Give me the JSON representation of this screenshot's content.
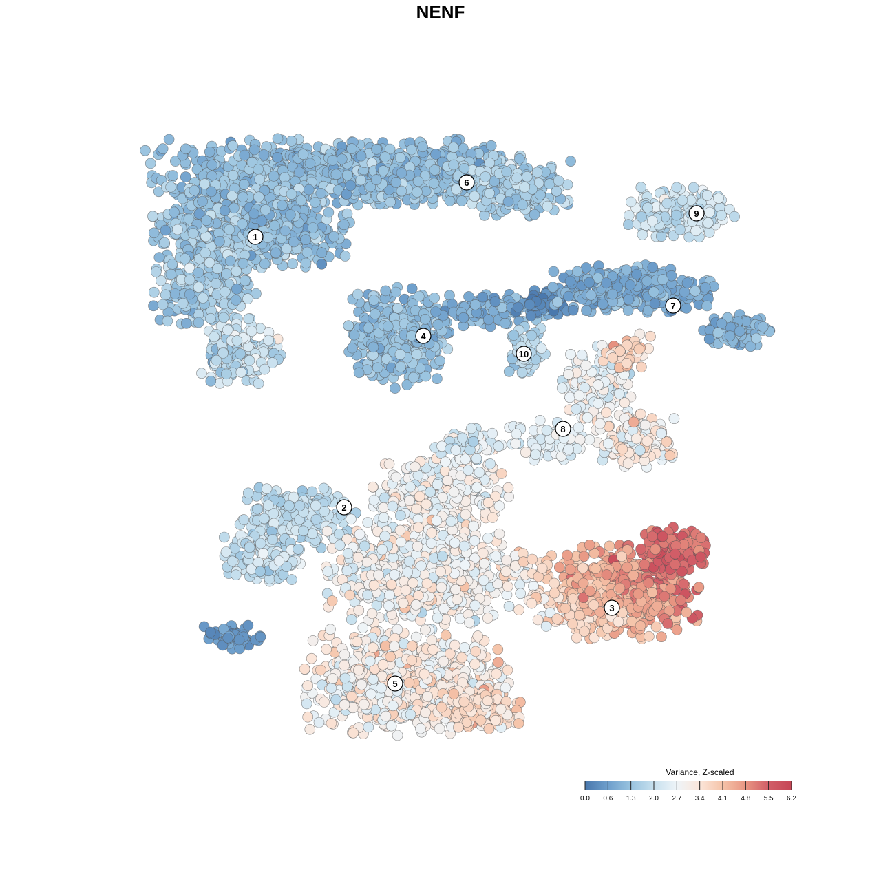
{
  "title": "NENF",
  "legend": {
    "title": "Variance, Z-scaled",
    "ticks": [
      "0.0",
      "0.6",
      "1.3",
      "2.0",
      "2.7",
      "3.4",
      "4.1",
      "4.8",
      "5.5",
      "6.2"
    ],
    "range": [
      0.0,
      6.2
    ],
    "colors": [
      "#4a78ad",
      "#6e9fcc",
      "#99c3df",
      "#c7e0ee",
      "#eef4f8",
      "#fbe6da",
      "#f5c3a8",
      "#e89582",
      "#d15d67",
      "#c64656"
    ]
  },
  "chart_data": {
    "type": "scatter",
    "title": "NENF",
    "xlabel": "",
    "ylabel": "",
    "grid": false,
    "legend_position": "bottom-right",
    "color_variable": "Variance, Z-scaled",
    "color_range": [
      0.0,
      6.2
    ],
    "point_count_approx": 6000,
    "clusters": [
      {
        "label": "1",
        "mean_value": 1.4
      },
      {
        "label": "2",
        "mean_value": 2.0
      },
      {
        "label": "3",
        "mean_value": 4.6
      },
      {
        "label": "4",
        "mean_value": 1.4
      },
      {
        "label": "5",
        "mean_value": 3.2
      },
      {
        "label": "6",
        "mean_value": 1.5
      },
      {
        "label": "7",
        "mean_value": 1.0
      },
      {
        "label": "8",
        "mean_value": 2.9
      },
      {
        "label": "9",
        "mean_value": 2.1
      },
      {
        "label": "10",
        "mean_value": 1.7
      }
    ]
  }
}
